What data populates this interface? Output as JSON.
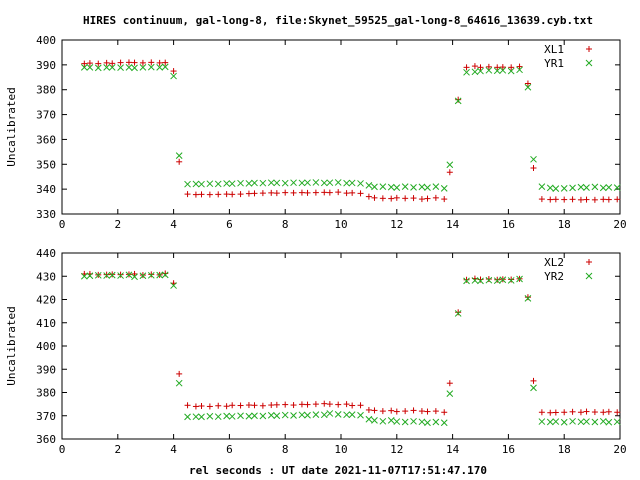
{
  "title": "HIRES continuum, gal-long-8, file:Skynet_59525_gal-long-8_64616_13639.cyb.txt",
  "xlabel": "rel seconds : UT date 2021-11-07T17:51:47.170",
  "colors": {
    "series_a": "#cc0000",
    "series_b": "#22aa22",
    "axis": "#000000"
  },
  "chart_data": [
    {
      "type": "scatter",
      "ylabel": "Uncalibrated",
      "xlim": [
        0,
        20
      ],
      "ylim": [
        330,
        400
      ],
      "xticks": [
        0,
        2,
        4,
        6,
        8,
        10,
        12,
        14,
        16,
        18,
        20
      ],
      "yticks": [
        330,
        340,
        350,
        360,
        370,
        380,
        390,
        400
      ],
      "legend_position": "top-right",
      "series": [
        {
          "name": "XL1",
          "marker": "plus",
          "x": [
            0.8,
            1.0,
            1.3,
            1.6,
            1.8,
            2.1,
            2.4,
            2.6,
            2.9,
            3.2,
            3.5,
            3.7,
            4.0,
            4.2,
            4.5,
            4.8,
            5.0,
            5.3,
            5.6,
            5.9,
            6.1,
            6.4,
            6.7,
            6.9,
            7.2,
            7.5,
            7.7,
            8.0,
            8.3,
            8.6,
            8.8,
            9.1,
            9.4,
            9.6,
            9.9,
            10.2,
            10.4,
            10.7,
            11.0,
            11.2,
            11.5,
            11.8,
            12.0,
            12.3,
            12.6,
            12.9,
            13.1,
            13.4,
            13.7,
            13.9,
            14.2,
            14.5,
            14.8,
            15.0,
            15.3,
            15.6,
            15.8,
            16.1,
            16.4,
            16.7,
            16.9,
            17.2,
            17.5,
            17.7,
            18.0,
            18.3,
            18.6,
            18.8,
            19.1,
            19.4,
            19.6,
            19.9
          ],
          "y": [
            390.5,
            390.7,
            390.5,
            390.8,
            390.6,
            390.9,
            391.0,
            390.9,
            390.8,
            391.0,
            390.8,
            390.9,
            387.5,
            351.0,
            338.0,
            337.8,
            337.9,
            337.8,
            337.9,
            338.0,
            337.9,
            338.0,
            338.2,
            338.3,
            338.4,
            338.5,
            338.4,
            338.6,
            338.5,
            338.6,
            338.5,
            338.6,
            338.7,
            338.6,
            338.8,
            338.4,
            338.5,
            338.3,
            337.0,
            336.5,
            336.3,
            336.2,
            336.5,
            336.3,
            336.4,
            336.0,
            336.2,
            336.5,
            336.0,
            346.8,
            376.0,
            389.0,
            389.5,
            389.0,
            389.2,
            389.0,
            389.1,
            389.0,
            389.3,
            382.5,
            348.5,
            336.0,
            335.8,
            335.9,
            335.8,
            335.9,
            335.7,
            335.8,
            335.7,
            335.9,
            335.8,
            335.9
          ]
        },
        {
          "name": "YR1",
          "marker": "cross",
          "x": [
            0.8,
            1.0,
            1.3,
            1.6,
            1.8,
            2.1,
            2.4,
            2.6,
            2.9,
            3.2,
            3.5,
            3.7,
            4.0,
            4.2,
            4.5,
            4.8,
            5.0,
            5.3,
            5.6,
            5.9,
            6.1,
            6.4,
            6.7,
            6.9,
            7.2,
            7.5,
            7.7,
            8.0,
            8.3,
            8.6,
            8.8,
            9.1,
            9.4,
            9.6,
            9.9,
            10.2,
            10.4,
            10.7,
            11.0,
            11.2,
            11.5,
            11.8,
            12.0,
            12.3,
            12.6,
            12.9,
            13.1,
            13.4,
            13.7,
            13.9,
            14.2,
            14.5,
            14.8,
            15.0,
            15.3,
            15.6,
            15.8,
            16.1,
            16.4,
            16.7,
            16.9,
            17.2,
            17.5,
            17.7,
            18.0,
            18.3,
            18.6,
            18.8,
            19.1,
            19.4,
            19.6,
            19.9
          ],
          "y": [
            389.0,
            389.0,
            388.8,
            389.0,
            389.0,
            388.9,
            389.0,
            388.8,
            389.0,
            389.1,
            389.0,
            389.2,
            385.5,
            353.5,
            342.0,
            342.1,
            342.0,
            342.2,
            342.1,
            342.3,
            342.2,
            342.4,
            342.3,
            342.5,
            342.4,
            342.6,
            342.5,
            342.4,
            342.6,
            342.5,
            342.6,
            342.7,
            342.5,
            342.6,
            342.7,
            342.4,
            342.5,
            342.3,
            341.5,
            340.9,
            341.0,
            340.8,
            340.6,
            341.0,
            340.7,
            340.9,
            340.6,
            341.0,
            340.3,
            349.8,
            375.5,
            387.0,
            387.2,
            387.5,
            387.8,
            387.6,
            387.8,
            387.5,
            388.0,
            381.0,
            352.0,
            341.0,
            340.5,
            340.2,
            340.3,
            340.5,
            340.8,
            340.6,
            340.9,
            340.5,
            340.7,
            340.6
          ]
        }
      ]
    },
    {
      "type": "scatter",
      "ylabel": "Uncalibrated",
      "xlim": [
        0,
        20
      ],
      "ylim": [
        360,
        440
      ],
      "xticks": [
        0,
        2,
        4,
        6,
        8,
        10,
        12,
        14,
        16,
        18,
        20
      ],
      "yticks": [
        360,
        370,
        380,
        390,
        400,
        410,
        420,
        430,
        440
      ],
      "legend_position": "top-right",
      "series": [
        {
          "name": "XL2",
          "marker": "plus",
          "x": [
            0.8,
            1.0,
            1.3,
            1.6,
            1.8,
            2.1,
            2.4,
            2.6,
            2.9,
            3.2,
            3.5,
            3.7,
            4.0,
            4.2,
            4.5,
            4.8,
            5.0,
            5.3,
            5.6,
            5.9,
            6.1,
            6.4,
            6.7,
            6.9,
            7.2,
            7.5,
            7.7,
            8.0,
            8.3,
            8.6,
            8.8,
            9.1,
            9.4,
            9.6,
            9.9,
            10.2,
            10.4,
            10.7,
            11.0,
            11.2,
            11.5,
            11.8,
            12.0,
            12.3,
            12.6,
            12.9,
            13.1,
            13.4,
            13.7,
            13.9,
            14.2,
            14.5,
            14.8,
            15.0,
            15.3,
            15.6,
            15.8,
            16.1,
            16.4,
            16.7,
            16.9,
            17.2,
            17.5,
            17.7,
            18.0,
            18.3,
            18.6,
            18.8,
            19.1,
            19.4,
            19.6,
            19.9
          ],
          "y": [
            431.0,
            431.0,
            430.6,
            430.7,
            430.8,
            430.7,
            430.8,
            431.0,
            430.5,
            430.8,
            430.6,
            431.2,
            427.0,
            388.0,
            374.5,
            374.0,
            374.2,
            374.0,
            374.3,
            374.1,
            374.5,
            374.4,
            374.6,
            374.5,
            374.3,
            374.6,
            374.7,
            374.8,
            374.6,
            374.9,
            374.8,
            375.0,
            375.2,
            375.0,
            374.8,
            375.0,
            374.4,
            374.5,
            372.5,
            372.3,
            372.0,
            372.2,
            371.8,
            372.0,
            372.3,
            372.0,
            371.8,
            372.0,
            371.5,
            384.0,
            414.5,
            428.5,
            429.0,
            428.6,
            428.8,
            428.5,
            428.7,
            428.6,
            428.9,
            421.0,
            385.0,
            371.5,
            371.3,
            371.4,
            371.5,
            371.7,
            371.5,
            371.8,
            371.6,
            371.5,
            371.7,
            371.5
          ]
        },
        {
          "name": "YR2",
          "marker": "cross",
          "x": [
            0.8,
            1.0,
            1.3,
            1.6,
            1.8,
            2.1,
            2.4,
            2.6,
            2.9,
            3.2,
            3.5,
            3.7,
            4.0,
            4.2,
            4.5,
            4.8,
            5.0,
            5.3,
            5.6,
            5.9,
            6.1,
            6.4,
            6.7,
            6.9,
            7.2,
            7.5,
            7.7,
            8.0,
            8.3,
            8.6,
            8.8,
            9.1,
            9.4,
            9.6,
            9.9,
            10.2,
            10.4,
            10.7,
            11.0,
            11.2,
            11.5,
            11.8,
            12.0,
            12.3,
            12.6,
            12.9,
            13.1,
            13.4,
            13.7,
            13.9,
            14.2,
            14.5,
            14.8,
            15.0,
            15.3,
            15.6,
            15.8,
            16.1,
            16.4,
            16.7,
            16.9,
            17.2,
            17.5,
            17.7,
            18.0,
            18.3,
            18.6,
            18.8,
            19.1,
            19.4,
            19.6,
            19.9
          ],
          "y": [
            430.0,
            430.2,
            430.4,
            430.3,
            430.5,
            430.3,
            430.6,
            429.8,
            430.2,
            430.4,
            430.5,
            430.6,
            426.0,
            384.0,
            369.5,
            369.6,
            369.5,
            369.8,
            369.6,
            369.9,
            369.7,
            370.0,
            369.8,
            370.0,
            369.9,
            370.2,
            370.0,
            370.3,
            370.1,
            370.4,
            370.2,
            370.5,
            370.4,
            371.0,
            370.6,
            370.4,
            370.5,
            370.2,
            368.5,
            368.0,
            367.6,
            368.0,
            367.5,
            367.3,
            367.6,
            367.4,
            367.0,
            367.3,
            367.0,
            379.5,
            414.0,
            428.0,
            428.2,
            428.0,
            428.3,
            428.1,
            428.5,
            428.2,
            428.8,
            420.5,
            382.0,
            367.5,
            367.3,
            367.5,
            367.2,
            367.6,
            367.4,
            367.5,
            367.3,
            367.6,
            367.2,
            367.4
          ]
        }
      ]
    }
  ]
}
